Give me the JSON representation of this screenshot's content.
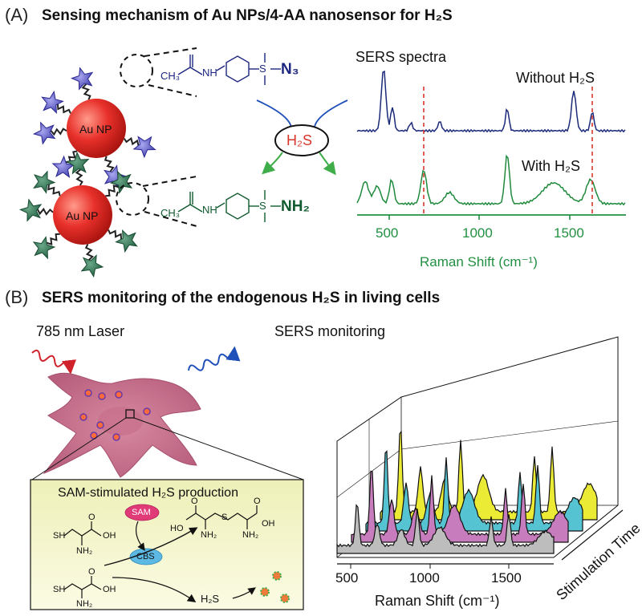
{
  "panel_a": {
    "letter": "(A)",
    "title": "Sensing mechanism of Au NPs/4-AA nanosensor for H₂S",
    "np_label": "Au NP",
    "top_chem": {
      "left": "CH₃",
      "nh": "NH",
      "s": "S",
      "group": "N₃"
    },
    "bottom_chem": {
      "left": "CH₃",
      "nh": "NH",
      "s": "S",
      "group": "NH₂"
    },
    "trigger": "H₂S",
    "spectra_title": "SERS spectra",
    "without_label": "Without H₂S",
    "with_label": "With H₂S",
    "xlabel": "Raman Shift (cm⁻¹)",
    "xticks": [
      "500",
      "1000",
      "1500"
    ],
    "colors": {
      "without": "#1c2a7a",
      "with": "#1f8a3c",
      "marker": "#d9362b",
      "axis": "#229043"
    }
  },
  "panel_b": {
    "letter": "(B)",
    "title": "SERS monitoring of the endogenous H₂S in  living cells",
    "laser_label": "785 nm Laser",
    "monitor_label": "SERS monitoring",
    "box_title": "SAM-stimulated H₂S production",
    "enzyme_sam": "SAM",
    "enzyme_cbs": "CBS",
    "product": "H₂S",
    "xlabel": "Raman Shift (cm⁻¹)",
    "xticks": [
      "500",
      "1000",
      "1500"
    ],
    "zlabel": "Stimulation Time",
    "chem_labels": {
      "sh": "SH",
      "nh2": "NH₂",
      "oh": "OH",
      "ho": "HO",
      "s": "S",
      "o": "O"
    },
    "colors": {
      "cell": "#c9738c",
      "layer1": "#bdbdbd",
      "layer2": "#c77dbd",
      "layer3": "#55c3d1",
      "layer4": "#ebeb35",
      "box": "#f6f6c8"
    }
  }
}
